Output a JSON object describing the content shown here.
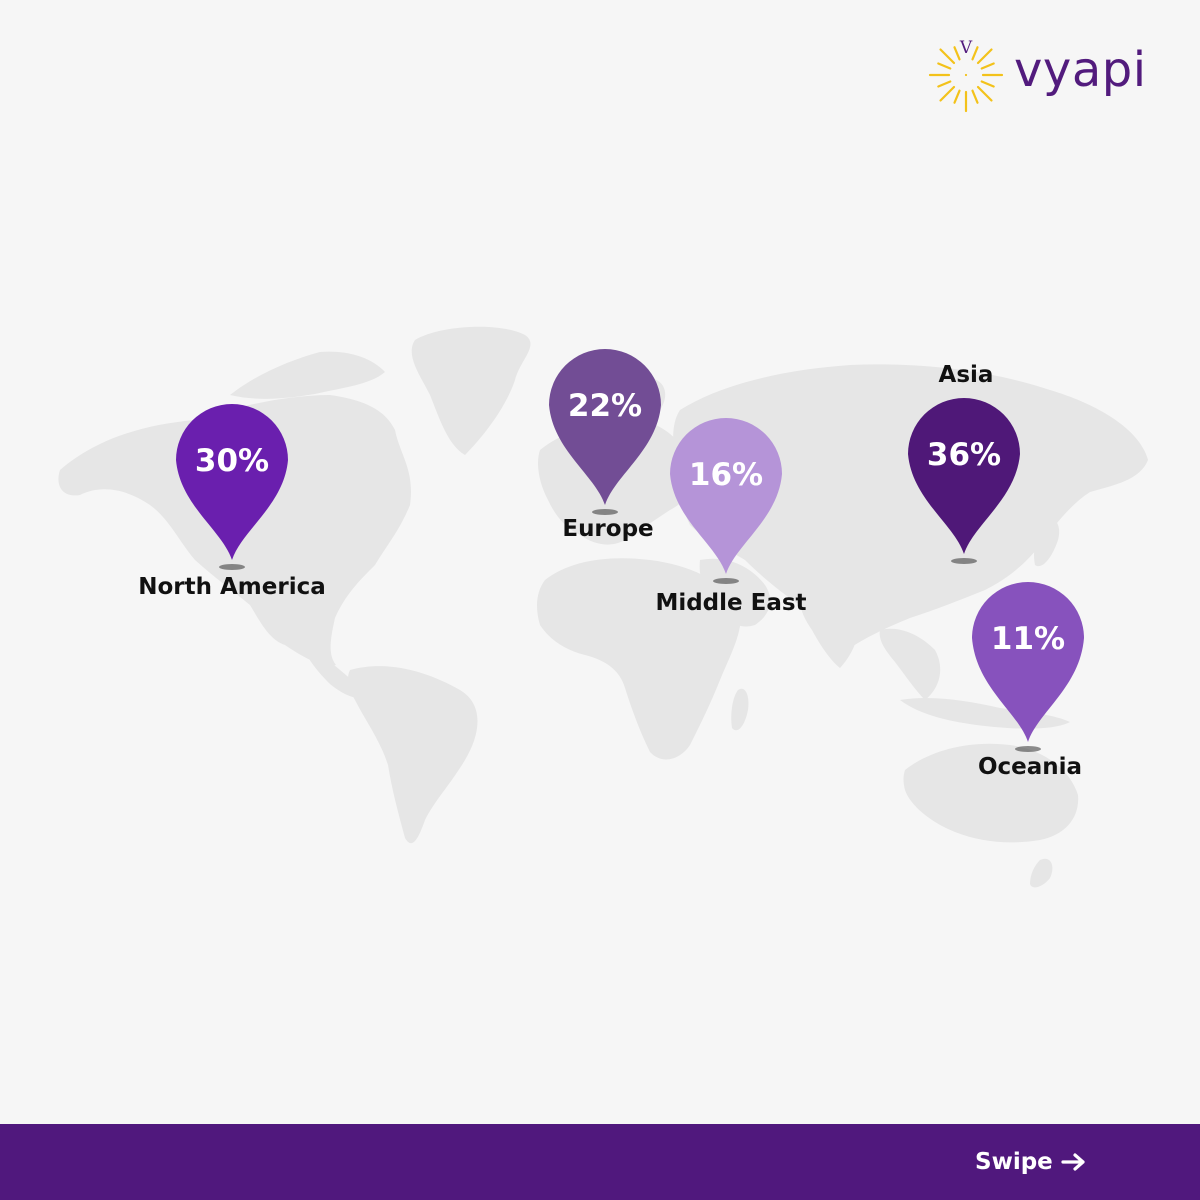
{
  "brand": {
    "name": "vyapi",
    "mark_letter": "V",
    "primary_color": "#50187d",
    "accent_color": "#f3c21a"
  },
  "regions": [
    {
      "name": "North America",
      "value": "30%",
      "color": "#6a1fae"
    },
    {
      "name": "Europe",
      "value": "22%",
      "color": "#724d95"
    },
    {
      "name": "Middle East",
      "value": "16%",
      "color": "#b594d8"
    },
    {
      "name": "Asia",
      "value": "36%",
      "color": "#4f1878"
    },
    {
      "name": "Oceania",
      "value": "11%",
      "color": "#8752bd"
    }
  ],
  "footer": {
    "swipe_label": "Swipe",
    "arrow_icon": "arrow-right-icon"
  }
}
